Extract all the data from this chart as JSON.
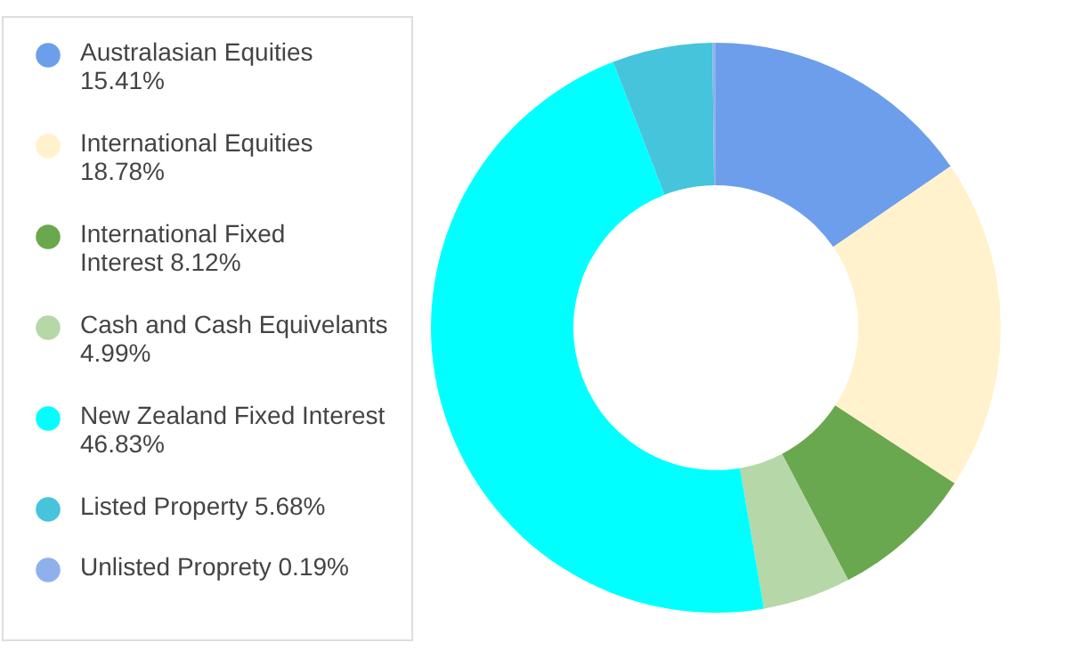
{
  "chart_data": {
    "type": "donut",
    "categories": [
      "Australasian Equities 15.41%",
      "International Equities 18.78%",
      "International Fixed Interest 8.12%",
      "Cash and Cash Equivelants 4.99%",
      "New Zealand Fixed Interest 46.83%",
      "Listed Property 5.68%",
      "Unlisted Proprety 0.19%"
    ],
    "values": [
      15.41,
      18.78,
      8.12,
      4.99,
      46.83,
      5.68,
      0.19
    ],
    "colors": [
      "#6d9eeb",
      "#fff2cc",
      "#6aa84f",
      "#b6d7a8",
      "#00ffff",
      "#45c4dc",
      "#8fb0ec"
    ],
    "legend": "left"
  }
}
